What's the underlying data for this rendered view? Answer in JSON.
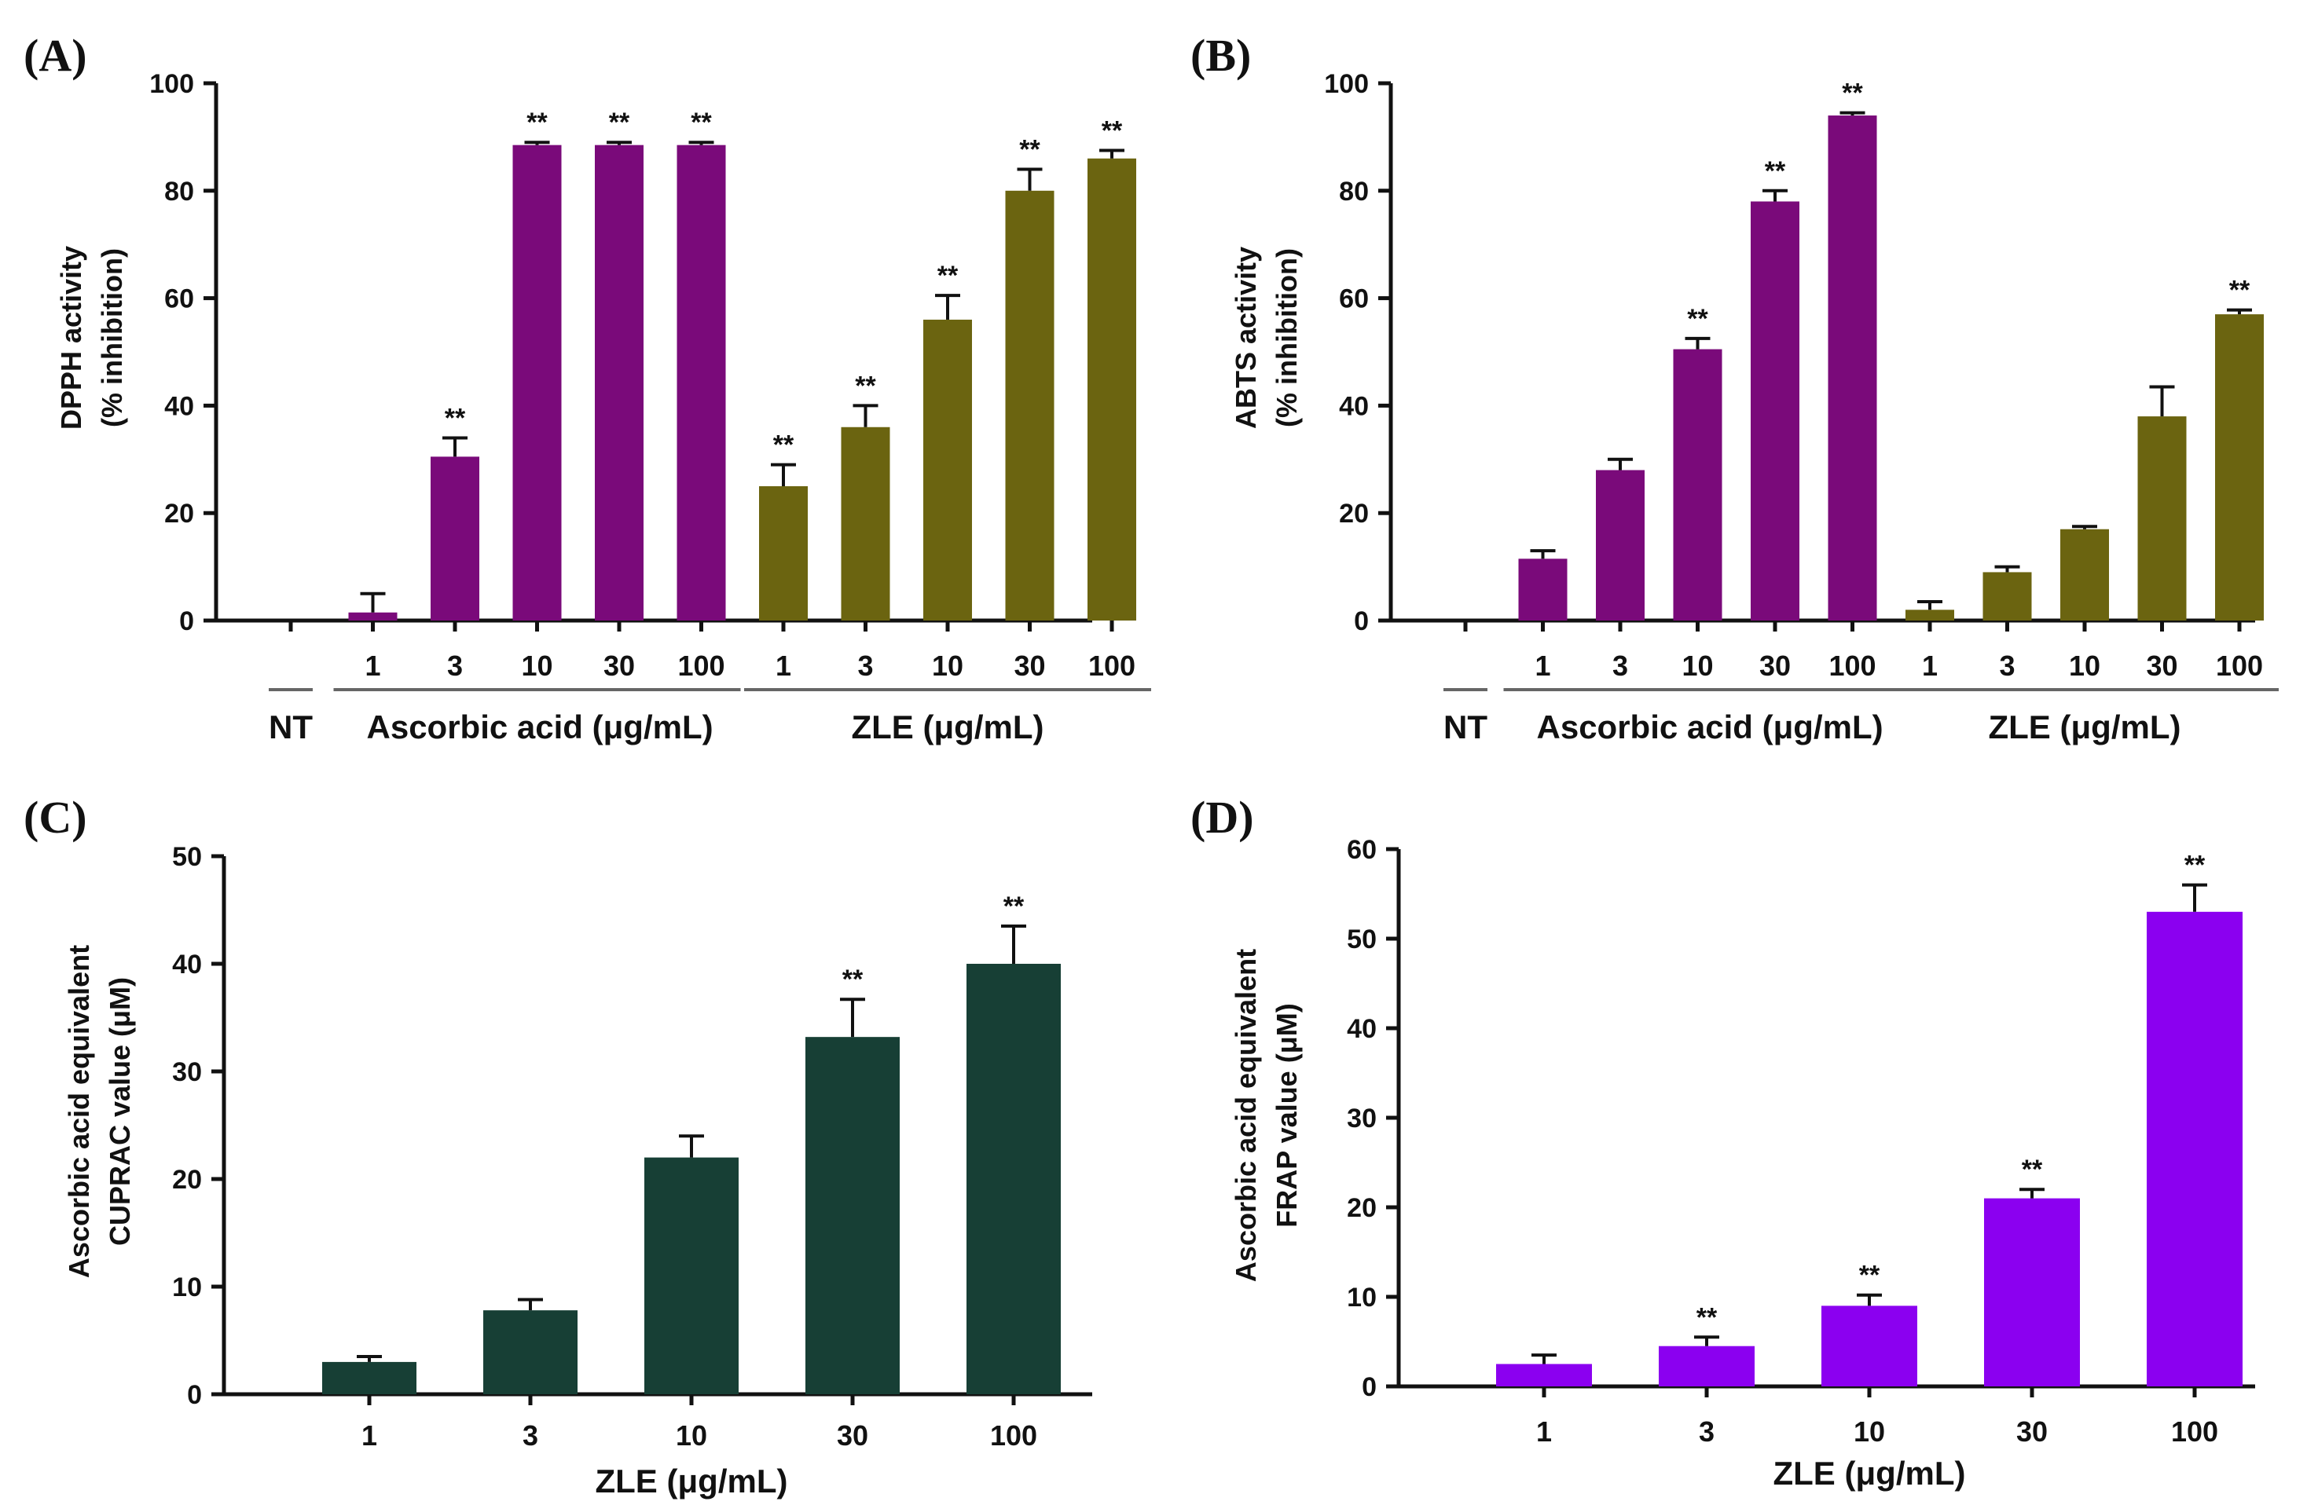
{
  "chart_data": [
    {
      "id": "A",
      "panel_label": "(A)",
      "type": "bar",
      "ylabel_lines": [
        "DPPH activity",
        "(% inhibition)"
      ],
      "ylim": [
        0,
        100
      ],
      "yticks": [
        "0",
        "20",
        "40",
        "60",
        "80",
        "100"
      ],
      "categories": [
        "",
        "1",
        "3",
        "10",
        "30",
        "100",
        "1",
        "3",
        "10",
        "30",
        "100"
      ],
      "values": [
        0,
        1.5,
        30.5,
        88.5,
        88.5,
        88.5,
        25,
        36,
        56,
        80,
        86
      ],
      "errors": [
        0,
        3.5,
        3.5,
        0.5,
        0.5,
        0.5,
        4,
        4,
        4.5,
        4,
        1.5
      ],
      "stars": [
        "",
        "",
        "**",
        "**",
        "**",
        "**",
        "**",
        "**",
        "**",
        "**",
        "**"
      ],
      "colors": [
        "#000000",
        "#7a0a7a",
        "#7a0a7a",
        "#7a0a7a",
        "#7a0a7a",
        "#7a0a7a",
        "#6b6410",
        "#6b6410",
        "#6b6410",
        "#6b6410",
        "#6b6410"
      ],
      "groups": [
        {
          "label": "NT",
          "from": 0,
          "to": 0
        },
        {
          "label": "Ascorbic acid (μg/mL)",
          "from": 1,
          "to": 5
        },
        {
          "label": "ZLE (μg/mL)",
          "from": 6,
          "to": 10
        }
      ]
    },
    {
      "id": "B",
      "panel_label": "(B)",
      "type": "bar",
      "ylabel_lines": [
        "ABTS activity",
        "(% inhibition)"
      ],
      "ylim": [
        0,
        100
      ],
      "yticks": [
        "0",
        "20",
        "40",
        "60",
        "80",
        "100"
      ],
      "categories": [
        "",
        "1",
        "3",
        "10",
        "30",
        "100",
        "1",
        "3",
        "10",
        "30",
        "100"
      ],
      "values": [
        0,
        11.5,
        28,
        50.5,
        78,
        94,
        2,
        9,
        17,
        38,
        57
      ],
      "errors": [
        0,
        1.5,
        2,
        2,
        2,
        0.5,
        1.5,
        1,
        0.5,
        5.5,
        0.8
      ],
      "stars": [
        "",
        "",
        "",
        "**",
        "**",
        "**",
        "",
        "",
        "",
        "",
        "**"
      ],
      "colors": [
        "#000000",
        "#7a0a7a",
        "#7a0a7a",
        "#7a0a7a",
        "#7a0a7a",
        "#7a0a7a",
        "#6b6410",
        "#6b6410",
        "#6b6410",
        "#6b6410",
        "#6b6410"
      ],
      "groups": [
        {
          "label": "NT",
          "from": 0,
          "to": 0
        },
        {
          "label": "Ascorbic acid (μg/mL)",
          "from": 1,
          "to": 5
        },
        {
          "label": "ZLE (μg/mL)",
          "from": 6,
          "to": 10
        }
      ]
    },
    {
      "id": "C",
      "panel_label": "(C)",
      "type": "bar",
      "ylabel_lines": [
        "Ascorbic acid equivalent",
        "CUPRAC value (μM)"
      ],
      "xlabel": "ZLE (μg/mL)",
      "ylim": [
        0,
        50
      ],
      "yticks": [
        "0",
        "10",
        "20",
        "30",
        "40",
        "50"
      ],
      "categories": [
        "1",
        "3",
        "10",
        "30",
        "100"
      ],
      "values": [
        3,
        7.8,
        22,
        33.2,
        40
      ],
      "errors": [
        0.5,
        1,
        2,
        3.5,
        3.5
      ],
      "stars": [
        "",
        "",
        "",
        "**",
        "**"
      ],
      "colors": [
        "#173f35",
        "#173f35",
        "#173f35",
        "#173f35",
        "#173f35"
      ]
    },
    {
      "id": "D",
      "panel_label": "(D)",
      "type": "bar",
      "ylabel_lines": [
        "Ascorbic acid equivalent",
        "FRAP value (μM)"
      ],
      "xlabel": "ZLE (μg/mL)",
      "ylim": [
        0,
        60
      ],
      "yticks": [
        "0",
        "10",
        "20",
        "30",
        "40",
        "50",
        "60"
      ],
      "categories": [
        "1",
        "3",
        "10",
        "30",
        "100"
      ],
      "values": [
        2.5,
        4.5,
        9,
        21,
        53
      ],
      "errors": [
        1,
        1,
        1.2,
        1,
        3
      ],
      "stars": [
        "",
        "**",
        "**",
        "**",
        "**"
      ],
      "colors": [
        "#8b00f0",
        "#8b00f0",
        "#8b00f0",
        "#8b00f0",
        "#8b00f0"
      ]
    }
  ]
}
